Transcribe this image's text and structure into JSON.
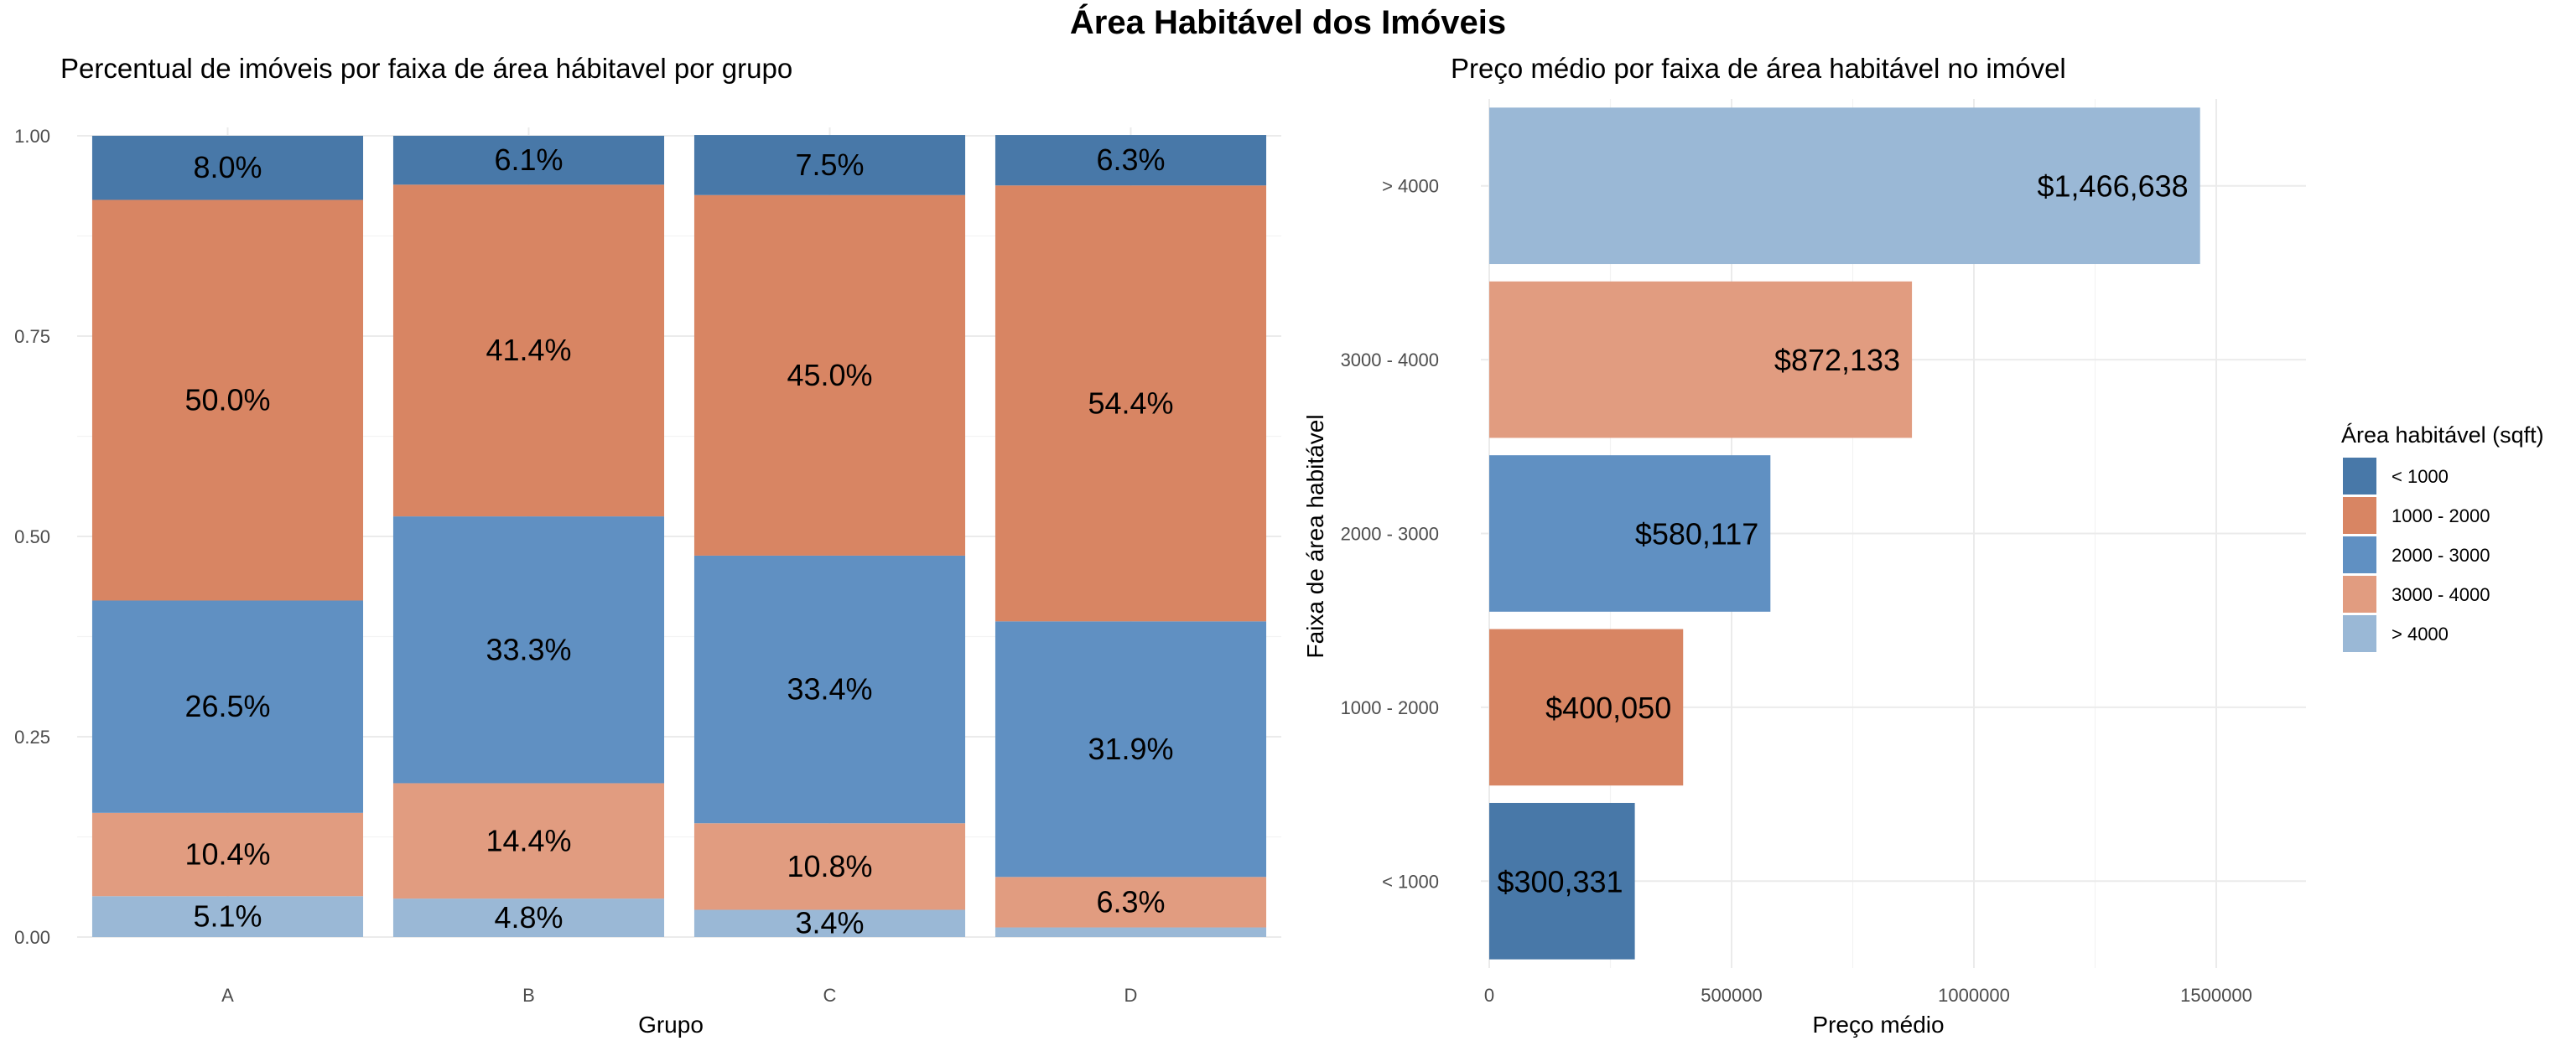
{
  "title": "Área Habitável dos Imóveis",
  "colors": {
    "< 1000": "#4878A8",
    "1000 - 2000": "#D88563",
    "2000 - 3000": "#6090C2",
    "3000 - 4000": "#E19C80",
    "> 4000": "#9AB8D6"
  },
  "legend": {
    "title": "Área habitável (sqft)",
    "items": [
      "< 1000",
      "1000 - 2000",
      "2000 - 3000",
      "3000 - 4000",
      "> 4000"
    ]
  },
  "chart_data": [
    {
      "type": "bar",
      "stacked": true,
      "title": "Percentual de imóveis por faixa de área hábitavel por grupo",
      "xlabel": "Grupo",
      "ylabel": "",
      "ylim": [
        0,
        1
      ],
      "yticks": [
        "0.00",
        "0.25",
        "0.50",
        "0.75",
        "1.00"
      ],
      "categories": [
        "A",
        "B",
        "C",
        "D"
      ],
      "series": [
        {
          "name": "> 4000",
          "values": [
            0.051,
            0.048,
            0.034,
            0.012
          ],
          "labels": [
            "5.1%",
            "4.8%",
            "3.4%",
            ""
          ]
        },
        {
          "name": "3000 - 4000",
          "values": [
            0.104,
            0.144,
            0.108,
            0.063
          ],
          "labels": [
            "10.4%",
            "14.4%",
            "10.8%",
            "6.3%"
          ]
        },
        {
          "name": "2000 - 3000",
          "values": [
            0.265,
            0.333,
            0.334,
            0.319
          ],
          "labels": [
            "26.5%",
            "33.3%",
            "33.4%",
            "31.9%"
          ]
        },
        {
          "name": "1000 - 2000",
          "values": [
            0.5,
            0.414,
            0.45,
            0.544
          ],
          "labels": [
            "50.0%",
            "41.4%",
            "45.0%",
            "54.4%"
          ]
        },
        {
          "name": "< 1000",
          "values": [
            0.08,
            0.061,
            0.075,
            0.063
          ],
          "labels": [
            "8.0%",
            "6.1%",
            "7.5%",
            "6.3%"
          ]
        }
      ],
      "grid": true
    },
    {
      "type": "bar",
      "orientation": "horizontal",
      "title": "Preço médio por faixa de área habitável no imóvel",
      "xlabel": "Preço médio",
      "ylabel": "Faixa de área habitável",
      "xlim": [
        0,
        1550000
      ],
      "xticks": [
        0,
        500000,
        1000000,
        1500000
      ],
      "xtick_labels": [
        "0",
        "500000",
        "1000000",
        "1500000"
      ],
      "categories": [
        "< 1000",
        "1000 - 2000",
        "2000 - 3000",
        "3000 - 4000",
        "> 4000"
      ],
      "values": [
        300331,
        400050,
        580117,
        872133,
        1466638
      ],
      "labels": [
        "$300,331",
        "$400,050",
        "$580,117",
        "$872,133",
        "$1,466,638"
      ],
      "grid": true,
      "legend_position": "right"
    }
  ]
}
